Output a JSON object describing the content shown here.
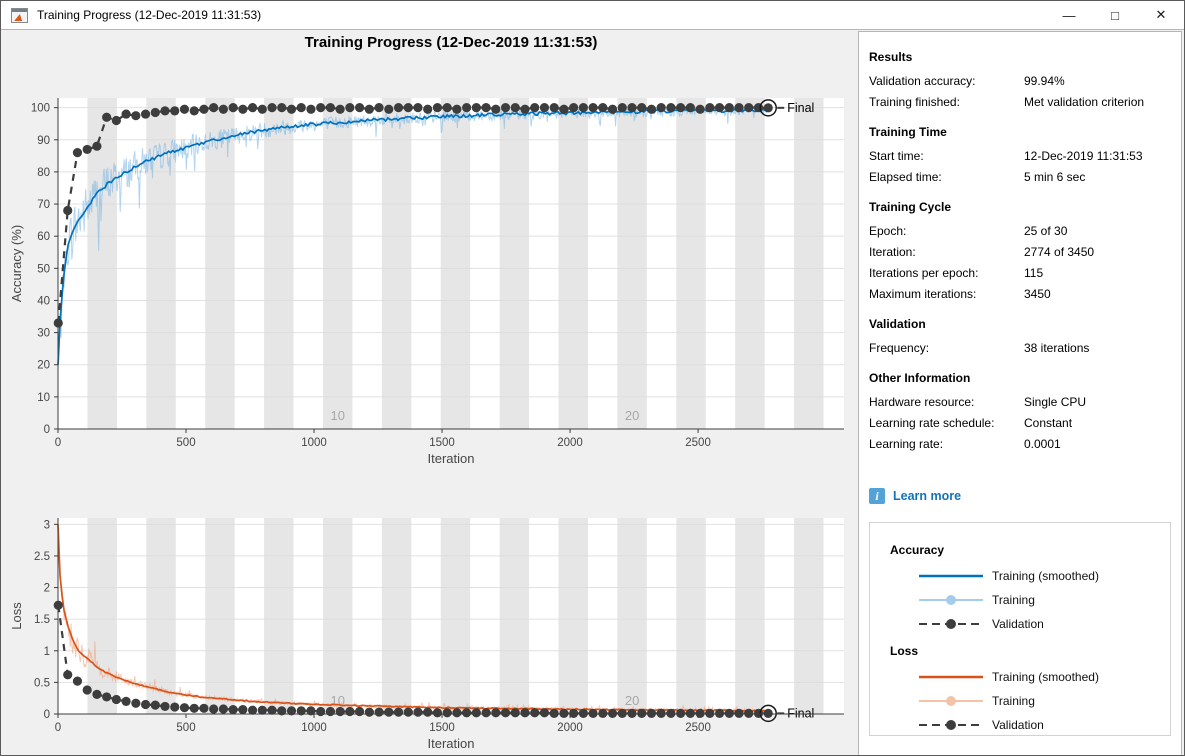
{
  "window": {
    "title": "Training Progress (12-Dec-2019 11:31:53)",
    "controls": [
      {
        "name": "minimize",
        "glyph": "—"
      },
      {
        "name": "maximize",
        "glyph": "□"
      },
      {
        "name": "close",
        "glyph": "✕"
      }
    ]
  },
  "figure": {
    "title": "Training Progress (12-Dec-2019 11:31:53)"
  },
  "panel": {
    "sections": [
      {
        "heading": "Results",
        "rows": [
          {
            "label": "Validation accuracy:",
            "value": "99.94%"
          },
          {
            "label": "Training finished:",
            "value": "Met validation criterion"
          }
        ]
      },
      {
        "heading": "Training Time",
        "rows": [
          {
            "label": "Start time:",
            "value": "12-Dec-2019 11:31:53"
          },
          {
            "label": "Elapsed time:",
            "value": "5 min 6 sec"
          }
        ]
      },
      {
        "heading": "Training Cycle",
        "rows": [
          {
            "label": "Epoch:",
            "value": "25 of 30"
          },
          {
            "label": "Iteration:",
            "value": "2774 of 3450"
          },
          {
            "label": "Iterations per epoch:",
            "value": "115"
          },
          {
            "label": "Maximum iterations:",
            "value": "3450"
          }
        ]
      },
      {
        "heading": "Validation",
        "rows": [
          {
            "label": "Frequency:",
            "value": "38 iterations"
          }
        ]
      },
      {
        "heading": "Other Information",
        "rows": [
          {
            "label": "Hardware resource:",
            "value": "Single CPU"
          },
          {
            "label": "Learning rate schedule:",
            "value": "Constant"
          },
          {
            "label": "Learning rate:",
            "value": "0.0001"
          }
        ]
      }
    ],
    "learn_more": "Learn more",
    "learn_more_icon": "i",
    "link_color": "#1373b9",
    "legend": {
      "groups": [
        {
          "title": "Accuracy",
          "items": [
            {
              "label": "Training (smoothed)",
              "style": "solid",
              "color": "#0072BD"
            },
            {
              "label": "Training",
              "style": "raw",
              "color": "#a5cdeb"
            },
            {
              "label": "Validation",
              "style": "dashed",
              "color": "#3d3d3d"
            }
          ]
        },
        {
          "title": "Loss",
          "items": [
            {
              "label": "Training (smoothed)",
              "style": "solid",
              "color": "#D95319"
            },
            {
              "label": "Training",
              "style": "raw",
              "color": "#f3c3a7"
            },
            {
              "label": "Validation",
              "style": "dashed",
              "color": "#3d3d3d"
            }
          ]
        }
      ]
    }
  },
  "validation_iterations": [
    1,
    38,
    76,
    114,
    152,
    190,
    228,
    266,
    304,
    342,
    380,
    418,
    456,
    494,
    532,
    570,
    608,
    646,
    684,
    722,
    760,
    798,
    836,
    874,
    912,
    950,
    988,
    1026,
    1064,
    1102,
    1140,
    1178,
    1216,
    1254,
    1292,
    1330,
    1368,
    1406,
    1444,
    1482,
    1520,
    1558,
    1596,
    1634,
    1672,
    1710,
    1748,
    1786,
    1824,
    1862,
    1900,
    1938,
    1976,
    2014,
    2052,
    2090,
    2128,
    2166,
    2204,
    2242,
    2280,
    2318,
    2356,
    2394,
    2432,
    2470,
    2508,
    2546,
    2584,
    2622,
    2660,
    2698,
    2736,
    2774
  ],
  "chart_data": [
    {
      "type": "line",
      "ylabel": "Accuracy (%)",
      "xlabel": "Iteration",
      "xlim": [
        0,
        3070
      ],
      "ylim": [
        0,
        103
      ],
      "xticks": [
        0,
        500,
        1000,
        1500,
        2000,
        2500
      ],
      "yticks": [
        0,
        10,
        20,
        30,
        40,
        50,
        60,
        70,
        80,
        90,
        100
      ],
      "grid": "horizontal",
      "band_color": "#e6e6e6",
      "iterations_per_epoch": 115,
      "epoch_labels": [
        {
          "epoch": 10,
          "text": "10"
        },
        {
          "epoch": 20,
          "text": "20"
        }
      ],
      "final_label": "Final",
      "final_iteration": 2774,
      "final_value": 99.94,
      "series": [
        {
          "name": "Training (smoothed)",
          "color": "#0072BD",
          "anchors_x": [
            0,
            8,
            20,
            38,
            60,
            80,
            100,
            115,
            150,
            190,
            230,
            270,
            310,
            350,
            400,
            450,
            500,
            560,
            620,
            700,
            800,
            900,
            1000,
            1100,
            1200,
            1350,
            1500,
            1700,
            1900,
            2100,
            2300,
            2500,
            2774
          ],
          "anchors_y": [
            20,
            33,
            46,
            57,
            62,
            65,
            67,
            69,
            73,
            76,
            78.5,
            80,
            82,
            83.5,
            85,
            86.5,
            87.5,
            89,
            90,
            91.5,
            93,
            94,
            94.8,
            95.4,
            96,
            96.6,
            97.2,
            97.8,
            98.2,
            98.5,
            98.8,
            99,
            99.3
          ]
        },
        {
          "name": "Training",
          "color": "#7fb8e3",
          "derived_from": "smoothed-plus-noise"
        },
        {
          "name": "Validation",
          "color": "#3d3d3d",
          "linestyle": "dashed",
          "marker": "filled-circle",
          "y": [
            33,
            68,
            86,
            87,
            88,
            97,
            96,
            98,
            97.5,
            98,
            98.5,
            99,
            99,
            99.5,
            99,
            99.5,
            100,
            99.5,
            100,
            99.5,
            100,
            99.5,
            100,
            100,
            99.5,
            100,
            99.5,
            100,
            100,
            99.5,
            100,
            100,
            99.5,
            100,
            99.5,
            100,
            100,
            100,
            99.5,
            100,
            100,
            99.5,
            100,
            100,
            100,
            99.5,
            100,
            100,
            99.5,
            100,
            100,
            100,
            99.5,
            100,
            100,
            100,
            100,
            99.5,
            100,
            100,
            100,
            99.5,
            100,
            100,
            100,
            100,
            99.5,
            100,
            100,
            100,
            100,
            100,
            100,
            99.94
          ]
        }
      ]
    },
    {
      "type": "line",
      "ylabel": "Loss",
      "xlabel": "Iteration",
      "xlim": [
        0,
        3070
      ],
      "ylim": [
        0,
        3.1
      ],
      "xticks": [
        0,
        500,
        1000,
        1500,
        2000,
        2500
      ],
      "yticks": [
        0,
        0.5,
        1,
        1.5,
        2,
        2.5,
        3
      ],
      "grid": "horizontal",
      "band_color": "#e6e6e6",
      "iterations_per_epoch": 115,
      "epoch_labels": [
        {
          "epoch": 10,
          "text": "10"
        },
        {
          "epoch": 20,
          "text": "20"
        }
      ],
      "final_label": "Final",
      "final_iteration": 2774,
      "final_value": 0.01,
      "series": [
        {
          "name": "Training (smoothed)",
          "color": "#D95319",
          "anchors_x": [
            0,
            8,
            20,
            38,
            60,
            80,
            100,
            115,
            150,
            190,
            230,
            270,
            310,
            350,
            400,
            450,
            500,
            560,
            620,
            700,
            800,
            900,
            1000,
            1100,
            1200,
            1350,
            1500,
            1700,
            1900,
            2100,
            2300,
            2500,
            2774
          ],
          "anchors_y": [
            3.0,
            2.2,
            1.7,
            1.4,
            1.15,
            1.0,
            0.92,
            0.88,
            0.75,
            0.65,
            0.58,
            0.52,
            0.47,
            0.43,
            0.38,
            0.33,
            0.3,
            0.27,
            0.25,
            0.22,
            0.19,
            0.17,
            0.155,
            0.14,
            0.13,
            0.115,
            0.1,
            0.09,
            0.08,
            0.07,
            0.065,
            0.06,
            0.05
          ]
        },
        {
          "name": "Training",
          "color": "#f0a47e",
          "derived_from": "smoothed-plus-noise"
        },
        {
          "name": "Validation",
          "color": "#3d3d3d",
          "linestyle": "dashed",
          "marker": "filled-circle",
          "y": [
            1.72,
            0.62,
            0.52,
            0.38,
            0.31,
            0.27,
            0.23,
            0.2,
            0.17,
            0.15,
            0.14,
            0.12,
            0.11,
            0.1,
            0.09,
            0.09,
            0.08,
            0.08,
            0.07,
            0.07,
            0.06,
            0.06,
            0.06,
            0.05,
            0.05,
            0.05,
            0.05,
            0.04,
            0.04,
            0.04,
            0.04,
            0.04,
            0.03,
            0.03,
            0.03,
            0.03,
            0.03,
            0.03,
            0.03,
            0.02,
            0.02,
            0.02,
            0.02,
            0.02,
            0.02,
            0.02,
            0.02,
            0.02,
            0.02,
            0.02,
            0.02,
            0.01,
            0.01,
            0.01,
            0.01,
            0.01,
            0.01,
            0.01,
            0.01,
            0.01,
            0.01,
            0.01,
            0.01,
            0.01,
            0.01,
            0.01,
            0.01,
            0.01,
            0.01,
            0.01,
            0.01,
            0.01,
            0.01,
            0.01
          ]
        }
      ]
    }
  ]
}
